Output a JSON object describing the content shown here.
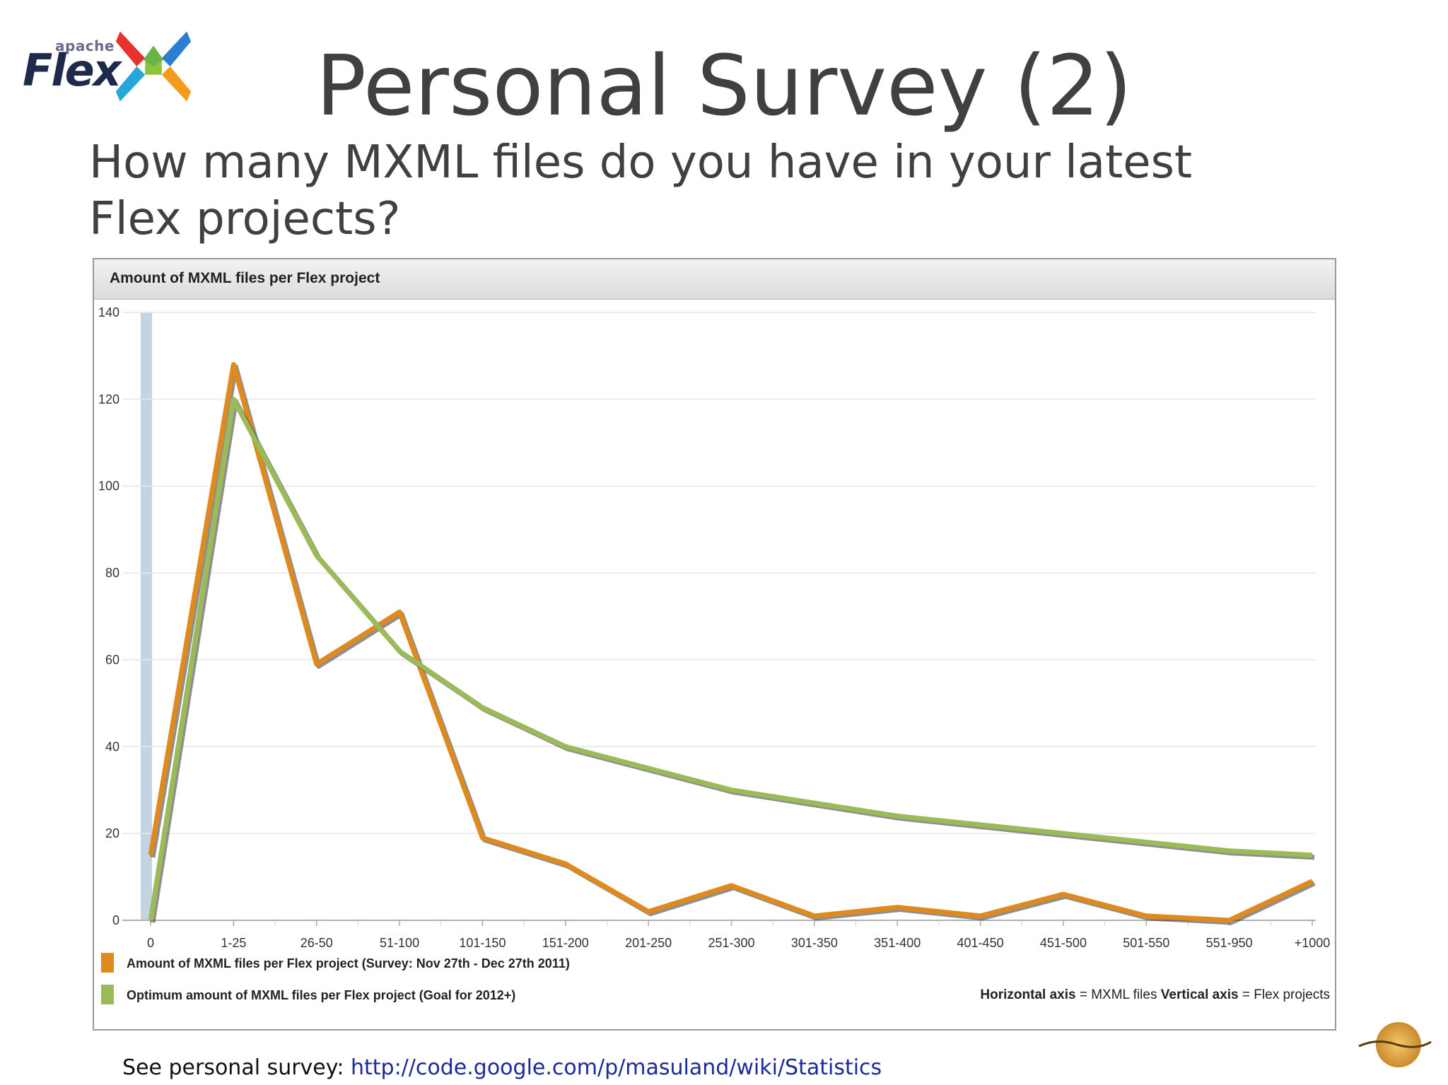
{
  "logo": {
    "small_text": "apache",
    "big_text": "Flex"
  },
  "slide": {
    "title": "Personal Survey (2)",
    "question": "How many MXML files do you have in your latest Flex projects?"
  },
  "footer": {
    "prefix": "See personal survey: ",
    "link": "http://code.google.com/p/masuland/wiki/Statistics"
  },
  "chart_data": {
    "type": "line",
    "title": "Amount of MXML files per Flex project",
    "categories": [
      "0",
      "1-25",
      "26-50",
      "51-100",
      "101-150",
      "151-200",
      "201-250",
      "251-300",
      "301-350",
      "351-400",
      "401-450",
      "451-500",
      "501-550",
      "551-950",
      "+1000"
    ],
    "ylim": [
      0,
      140
    ],
    "yticks": [
      0,
      20,
      40,
      60,
      80,
      100,
      120,
      140
    ],
    "grid": true,
    "legend_position": "bottom-left",
    "series": [
      {
        "name": "Amount of MXML files per Flex project (Survey: Nov 27th - Dec 27th 2011)",
        "color": "#e08a1e",
        "values": [
          15,
          128,
          59,
          71,
          19,
          13,
          2,
          8,
          1,
          3,
          1,
          6,
          1,
          0,
          9
        ]
      },
      {
        "name": "Optimum amount of MXML files per Flex project (Goal for 2012+)",
        "color": "#9bbb59",
        "values": [
          0,
          120,
          84,
          62,
          49,
          40,
          35,
          30,
          27,
          24,
          22,
          20,
          18,
          16,
          15
        ]
      }
    ],
    "axis_note": {
      "h_label": "Horizontal axis",
      "h_value": " = MXML files",
      "v_label": "Vertical axis",
      "v_value": " = Flex projects"
    }
  }
}
